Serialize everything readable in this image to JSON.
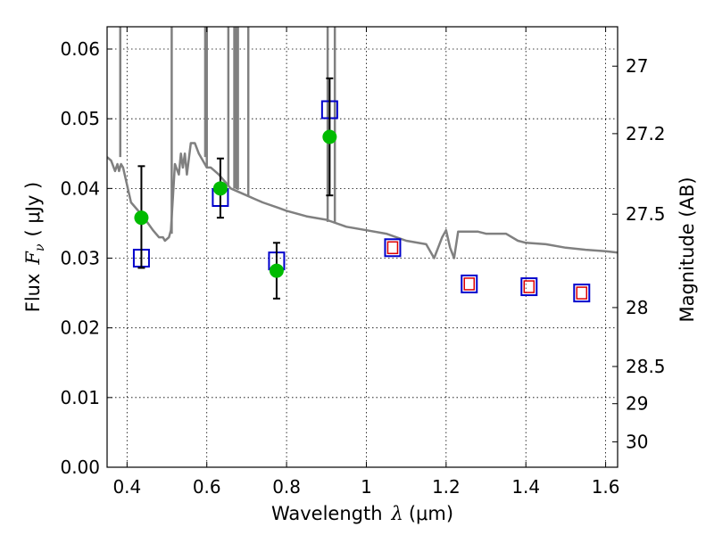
{
  "chart_data": {
    "type": "scatter",
    "xlabel_text": "Wavelength",
    "xlabel_math": "λ",
    "xlabel_unit": "(μm)",
    "ylabel_text": "Flux",
    "ylabel_math": "F",
    "ylabel_math_sub": "ν",
    "ylabel_unit": "( μJy )",
    "y2label": "Magnitude (AB)",
    "xlim": [
      0.35,
      1.63
    ],
    "ylim": [
      0.0,
      0.0632
    ],
    "x_ticks": [
      0.4,
      0.6,
      0.8,
      1.0,
      1.2,
      1.4,
      1.6
    ],
    "x_tick_labels": [
      "0.4",
      "0.6",
      "0.8",
      "1",
      "1.2",
      "1.4",
      "1.6"
    ],
    "y_ticks": [
      0.0,
      0.01,
      0.02,
      0.03,
      0.04,
      0.05,
      0.06
    ],
    "y_tick_labels": [
      "0.00",
      "0.01",
      "0.02",
      "0.03",
      "0.04",
      "0.05",
      "0.06"
    ],
    "y2_ticks": [
      27,
      27.2,
      27.5,
      28,
      28.5,
      29,
      30
    ],
    "y2_tick_labels": [
      "27",
      "27.2",
      "27.5",
      "28",
      "28.5",
      "29",
      "30"
    ],
    "grid": true,
    "colors": {
      "sed": "#808080",
      "observed": "#00bb00",
      "model_box": "#0000cc",
      "model_inner": "#dd0000",
      "errorbar": "#000000"
    },
    "series": [
      {
        "kind": "line",
        "points": [
          [
            0.35,
            0.0445
          ],
          [
            0.36,
            0.044
          ],
          [
            0.37,
            0.0425
          ],
          [
            0.376,
            0.0435
          ],
          [
            0.38,
            0.0425
          ],
          [
            0.385,
            0.0435
          ],
          [
            0.39,
            0.043
          ],
          [
            0.41,
            0.038
          ],
          [
            0.44,
            0.036
          ],
          [
            0.465,
            0.034
          ],
          [
            0.48,
            0.033
          ],
          [
            0.49,
            0.033
          ],
          [
            0.495,
            0.0325
          ],
          [
            0.505,
            0.033
          ],
          [
            0.51,
            0.034
          ],
          [
            0.52,
            0.0435
          ],
          [
            0.53,
            0.042
          ],
          [
            0.535,
            0.045
          ],
          [
            0.54,
            0.043
          ],
          [
            0.545,
            0.045
          ],
          [
            0.55,
            0.042
          ],
          [
            0.56,
            0.0465
          ],
          [
            0.57,
            0.0465
          ],
          [
            0.58,
            0.045
          ],
          [
            0.59,
            0.044
          ],
          [
            0.6,
            0.043
          ],
          [
            0.61,
            0.043
          ],
          [
            0.62,
            0.0425
          ],
          [
            0.63,
            0.042
          ],
          [
            0.66,
            0.04
          ],
          [
            0.7,
            0.039
          ],
          [
            0.72,
            0.0385
          ],
          [
            0.74,
            0.038
          ],
          [
            0.78,
            0.0372
          ],
          [
            0.8,
            0.0368
          ],
          [
            0.85,
            0.036
          ],
          [
            0.9,
            0.0355
          ],
          [
            0.95,
            0.0345
          ],
          [
            1.0,
            0.034
          ],
          [
            1.05,
            0.0335
          ],
          [
            1.1,
            0.0325
          ],
          [
            1.15,
            0.032
          ],
          [
            1.17,
            0.03
          ],
          [
            1.18,
            0.0315
          ],
          [
            1.19,
            0.033
          ],
          [
            1.2,
            0.034
          ],
          [
            1.21,
            0.0315
          ],
          [
            1.22,
            0.03
          ],
          [
            1.23,
            0.0338
          ],
          [
            1.28,
            0.0338
          ],
          [
            1.3,
            0.0335
          ],
          [
            1.35,
            0.0335
          ],
          [
            1.38,
            0.0325
          ],
          [
            1.4,
            0.0322
          ],
          [
            1.45,
            0.032
          ],
          [
            1.5,
            0.0315
          ],
          [
            1.55,
            0.0312
          ],
          [
            1.6,
            0.031
          ],
          [
            1.63,
            0.0308
          ]
        ],
        "spikes": [
          [
            0.383,
            0.0445
          ],
          [
            0.512,
            0.0335
          ],
          [
            0.596,
            0.0445
          ],
          [
            0.6,
            0.043
          ],
          [
            0.654,
            0.0405
          ],
          [
            0.669,
            0.04
          ],
          [
            0.673,
            0.04
          ],
          [
            0.678,
            0.0398
          ],
          [
            0.704,
            0.0388
          ],
          [
            0.903,
            0.0352
          ],
          [
            0.921,
            0.035
          ]
        ]
      },
      {
        "kind": "observed",
        "points": [
          {
            "x": 0.436,
            "y": 0.0358,
            "yerr_low": 0.0286,
            "yerr_high": 0.0432
          },
          {
            "x": 0.634,
            "y": 0.04,
            "yerr_low": 0.0358,
            "yerr_high": 0.0443
          },
          {
            "x": 0.775,
            "y": 0.0282,
            "yerr_low": 0.0242,
            "yerr_high": 0.0322
          },
          {
            "x": 0.908,
            "y": 0.0474,
            "yerr_low": 0.039,
            "yerr_high": 0.0558
          }
        ]
      },
      {
        "kind": "model",
        "points": [
          {
            "x": 0.436,
            "y": 0.03,
            "inner": false
          },
          {
            "x": 0.634,
            "y": 0.0387,
            "inner": false
          },
          {
            "x": 0.775,
            "y": 0.0296,
            "inner": false
          },
          {
            "x": 0.908,
            "y": 0.0513,
            "inner": false
          },
          {
            "x": 1.066,
            "y": 0.0315,
            "inner": true
          },
          {
            "x": 1.258,
            "y": 0.0263,
            "inner": true
          },
          {
            "x": 1.408,
            "y": 0.0259,
            "inner": true
          },
          {
            "x": 1.54,
            "y": 0.025,
            "inner": true
          }
        ]
      }
    ]
  }
}
